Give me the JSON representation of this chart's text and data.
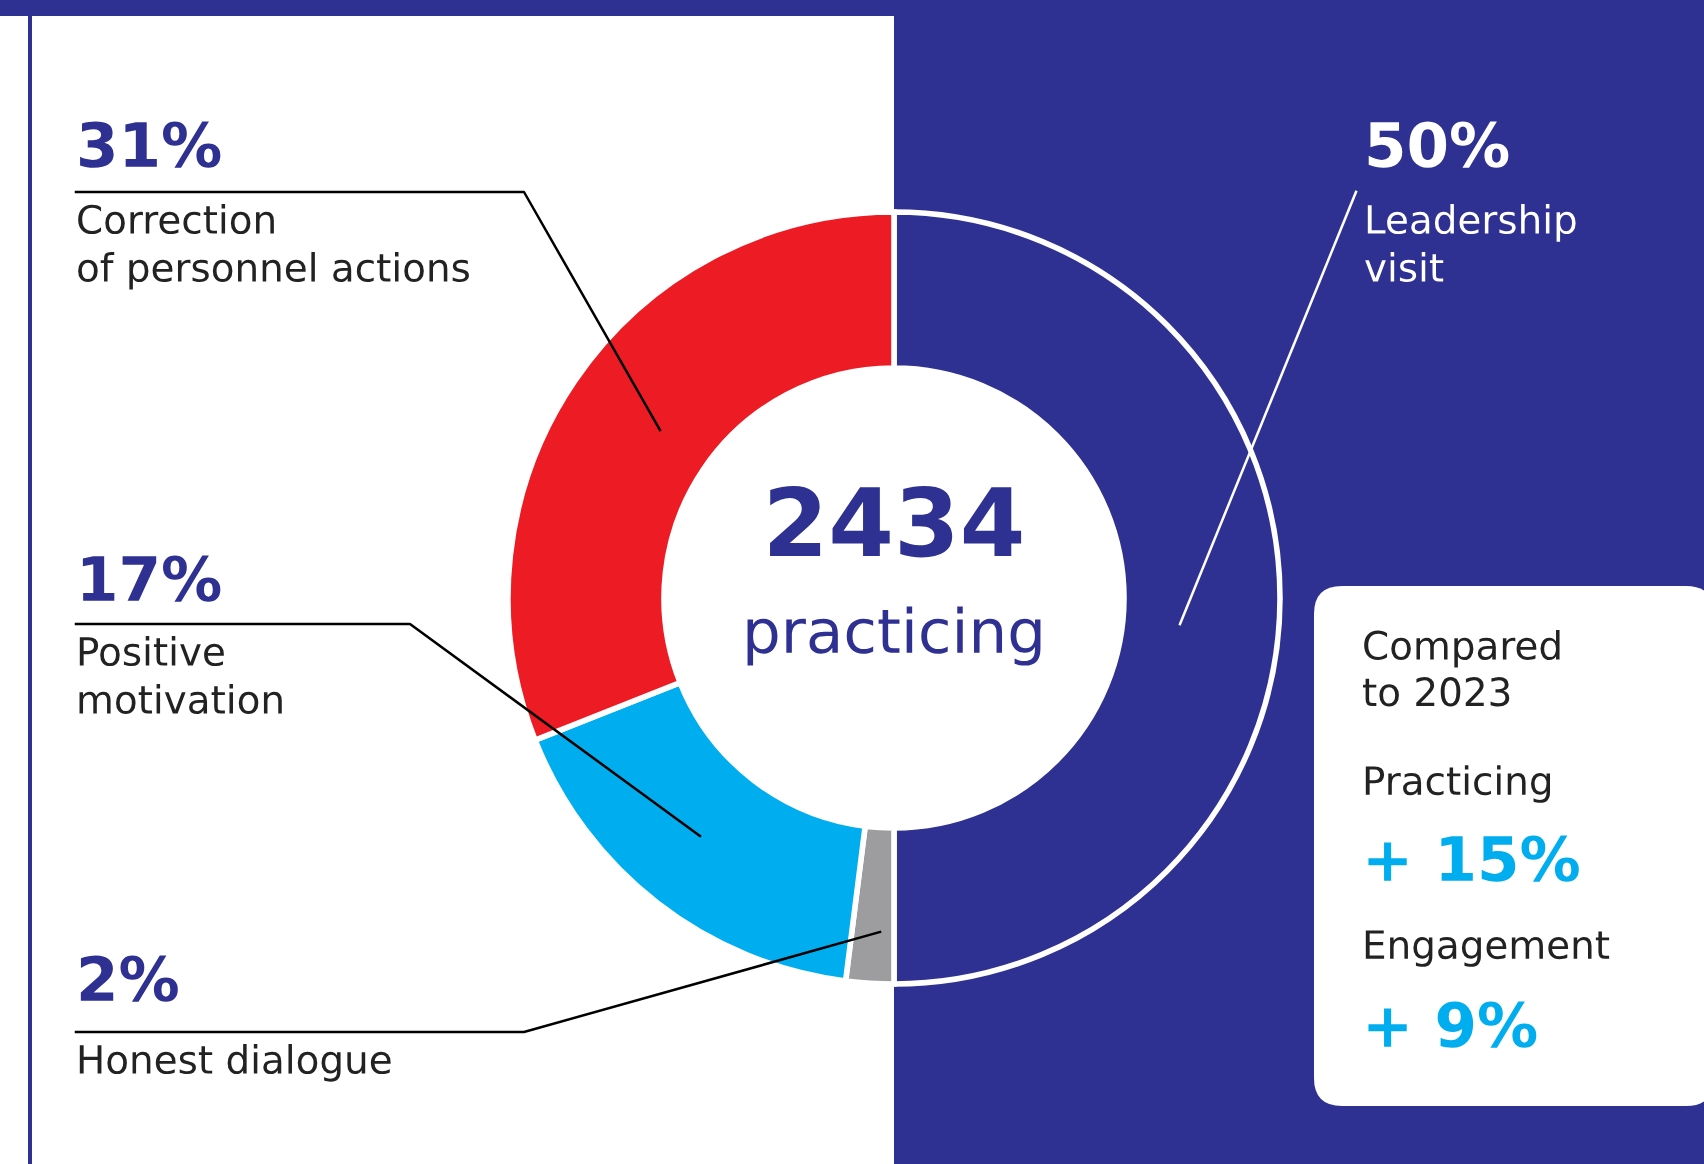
{
  "chart_data": {
    "type": "donut",
    "categories": [
      "Leadership\nvisit",
      "Honest dialogue",
      "Positive\nmotivation",
      "Correction\nof personnel actions"
    ],
    "values": [
      50,
      2,
      17,
      31
    ],
    "colors": [
      "#2e3191",
      "#9d9d9f",
      "#00aeef",
      "#ed1c24"
    ],
    "value_labels": [
      "50%",
      "2%",
      "17%",
      "31%"
    ],
    "annotations": [
      "2434",
      "practicing",
      "Compared\nto 2023",
      "Practicing",
      "+ 15%",
      "Engagement",
      "+ 9%"
    ]
  }
}
